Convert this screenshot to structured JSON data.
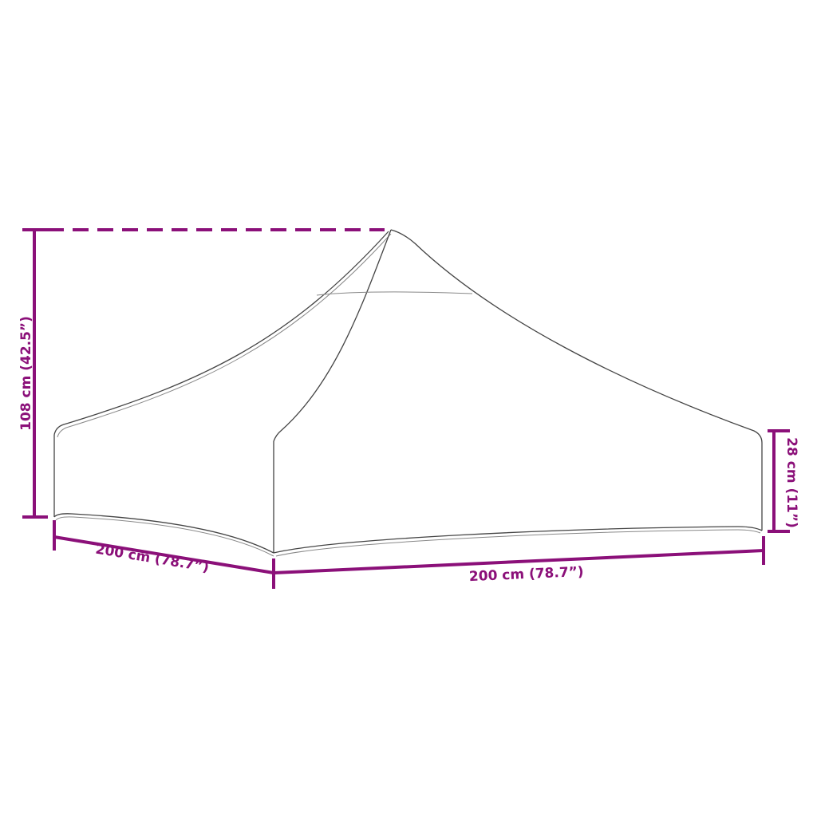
{
  "diagram": {
    "subject": "canopy roof",
    "accent_color": "#8b1079",
    "dimensions": {
      "height_total": "108 cm (42.5”)",
      "height_side": "28 cm (11”)",
      "depth": "200 cm (78.7”)",
      "width": "200 cm (78.7”)"
    }
  }
}
